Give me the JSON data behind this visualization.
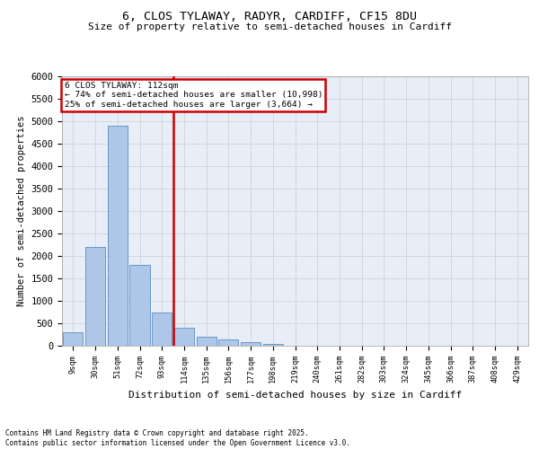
{
  "title1": "6, CLOS TYLAWAY, RADYR, CARDIFF, CF15 8DU",
  "title2": "Size of property relative to semi-detached houses in Cardiff",
  "xlabel": "Distribution of semi-detached houses by size in Cardiff",
  "ylabel": "Number of semi-detached properties",
  "bin_labels": [
    "9sqm",
    "30sqm",
    "51sqm",
    "72sqm",
    "93sqm",
    "114sqm",
    "135sqm",
    "156sqm",
    "177sqm",
    "198sqm",
    "219sqm",
    "240sqm",
    "261sqm",
    "282sqm",
    "303sqm",
    "324sqm",
    "345sqm",
    "366sqm",
    "387sqm",
    "408sqm",
    "429sqm"
  ],
  "bin_values": [
    300,
    2200,
    4900,
    1800,
    750,
    400,
    200,
    150,
    80,
    50,
    10,
    5,
    5,
    5,
    5,
    5,
    2,
    2,
    2,
    2,
    2
  ],
  "bar_color": "#aec6e8",
  "bar_edge_color": "#5a8fc0",
  "vline_bin": 5,
  "vline_color": "#cc0000",
  "annotation_title": "6 CLOS TYLAWAY: 112sqm",
  "annotation_line1": "← 74% of semi-detached houses are smaller (10,998)",
  "annotation_line2": "25% of semi-detached houses are larger (3,664) →",
  "annotation_box_color": "#cc0000",
  "ylim": [
    0,
    6000
  ],
  "yticks": [
    0,
    500,
    1000,
    1500,
    2000,
    2500,
    3000,
    3500,
    4000,
    4500,
    5000,
    5500,
    6000
  ],
  "grid_color": "#cccccc",
  "background_color": "#e8eef8",
  "footer_line1": "Contains HM Land Registry data © Crown copyright and database right 2025.",
  "footer_line2": "Contains public sector information licensed under the Open Government Licence v3.0."
}
